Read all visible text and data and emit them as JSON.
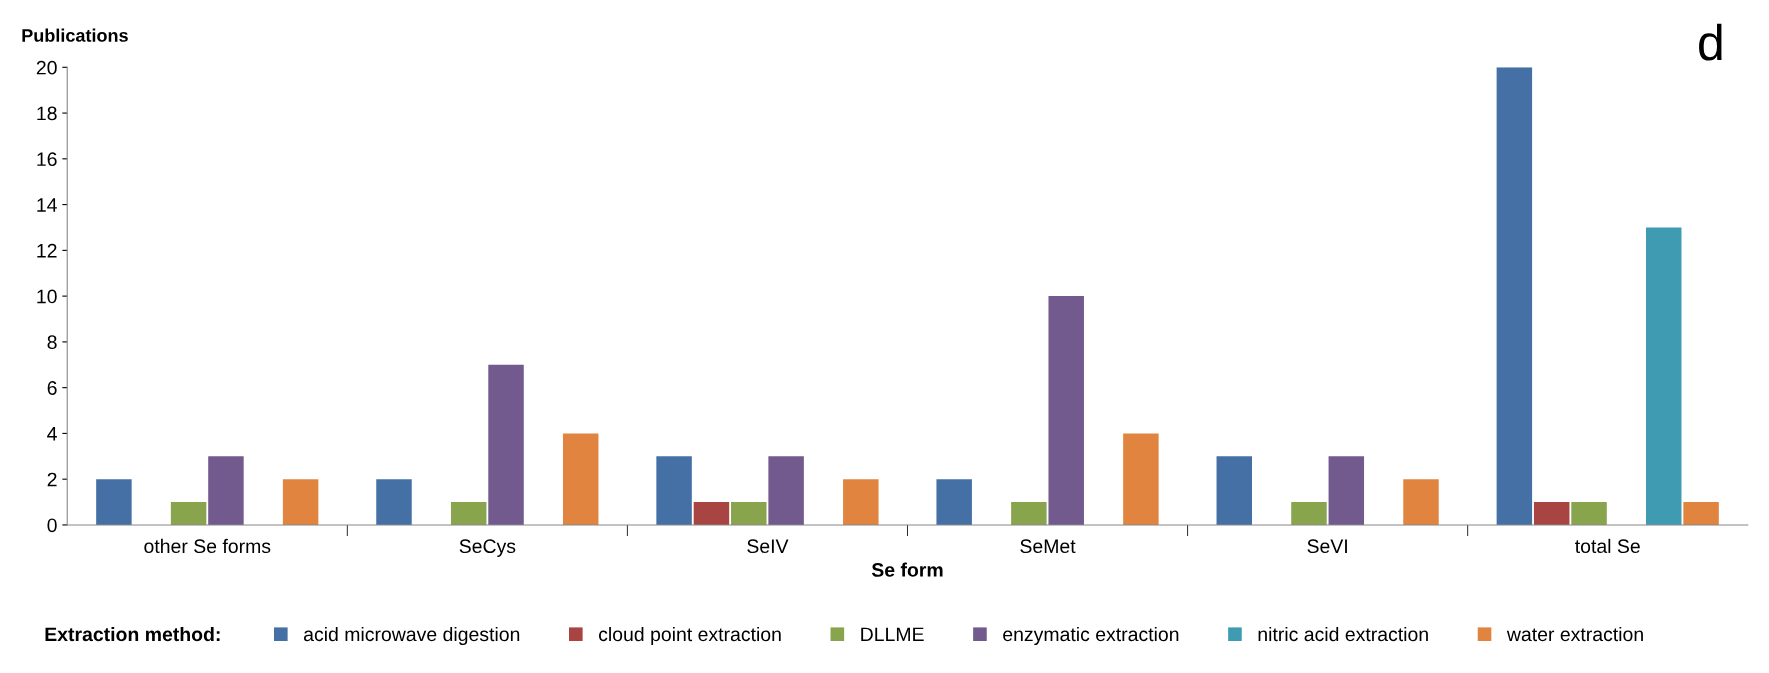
{
  "chart_data": {
    "type": "bar",
    "ylabel": "Publications",
    "xlabel": "Se form",
    "legend_title": "Extraction method:",
    "categories": [
      "other Se forms",
      "SeCys",
      "SeIV",
      "SeMet",
      "SeVI",
      "total Se"
    ],
    "series": [
      {
        "name": "acid microwave digestion",
        "color": "#4470a6",
        "values": [
          2,
          2,
          3,
          2,
          3,
          20
        ]
      },
      {
        "name": "cloud point extraction",
        "color": "#a84442",
        "values": [
          null,
          null,
          1,
          null,
          null,
          1
        ]
      },
      {
        "name": "DLLME",
        "color": "#88a44c",
        "values": [
          1,
          1,
          1,
          1,
          1,
          1
        ]
      },
      {
        "name": "enzymatic extraction",
        "color": "#725a8e",
        "values": [
          3,
          7,
          3,
          10,
          3,
          null
        ]
      },
      {
        "name": "nitric acid extraction",
        "color": "#3f9bb2",
        "values": [
          null,
          null,
          null,
          null,
          null,
          13
        ]
      },
      {
        "name": "water extraction",
        "color": "#e0843f",
        "values": [
          2,
          4,
          2,
          4,
          2,
          1
        ]
      }
    ],
    "ylim": [
      0,
      20
    ],
    "yticks": [
      0,
      2,
      4,
      6,
      8,
      10,
      12,
      14,
      16,
      18,
      20
    ],
    "grid": false,
    "legend": "bottom",
    "annotations": [
      "d"
    ]
  }
}
